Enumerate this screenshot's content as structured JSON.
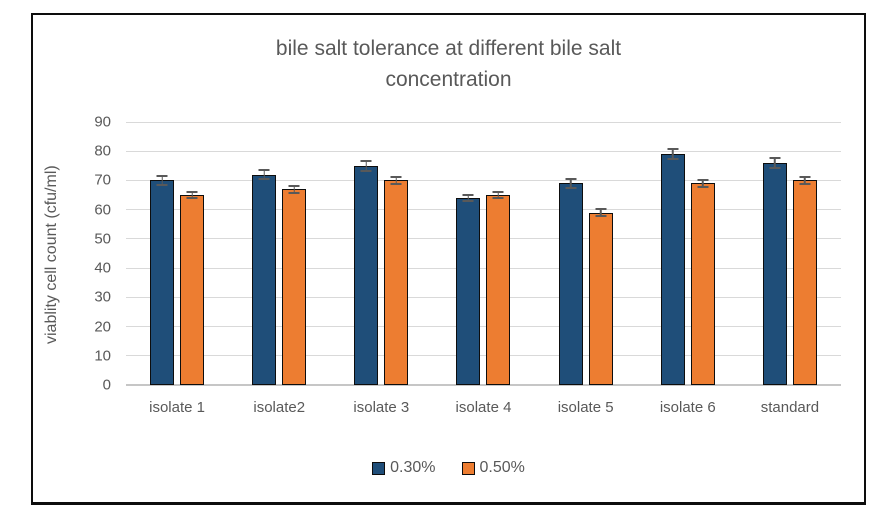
{
  "chart_data": {
    "type": "bar",
    "title": "bile salt tolerance at different bile salt concentration",
    "ylabel": "viablity cell count (cfu/ml)",
    "xlabel": "",
    "categories": [
      "isolate 1",
      "isolate2",
      "isolate 3",
      "isolate 4",
      "isolate 5",
      "isolate 6",
      "standard"
    ],
    "series": [
      {
        "name": "0.30%",
        "color": "#1F4E79",
        "values": [
          70,
          72,
          75,
          64,
          69,
          79,
          76
        ],
        "errors": [
          2,
          2,
          2,
          1.5,
          2,
          2,
          2
        ]
      },
      {
        "name": "0.50%",
        "color": "#ED7D31",
        "values": [
          65,
          67,
          70,
          65,
          59,
          69,
          70
        ],
        "errors": [
          1.5,
          1.5,
          1.5,
          1.5,
          1.5,
          1.5,
          1.5
        ]
      }
    ],
    "ylim": [
      0,
      90
    ],
    "yticks": [
      0,
      10,
      20,
      30,
      40,
      50,
      60,
      70,
      80,
      90
    ],
    "grid": true,
    "error_bars": true,
    "legend_position": "bottom",
    "colors": {
      "gridline": "#d9d9d9",
      "axis_text": "#595959",
      "title_text": "#595959",
      "error_bar": "#595959",
      "bar_border": "#0d0d0d",
      "frame_border": "#0d0d0d",
      "background": "#ffffff"
    }
  }
}
